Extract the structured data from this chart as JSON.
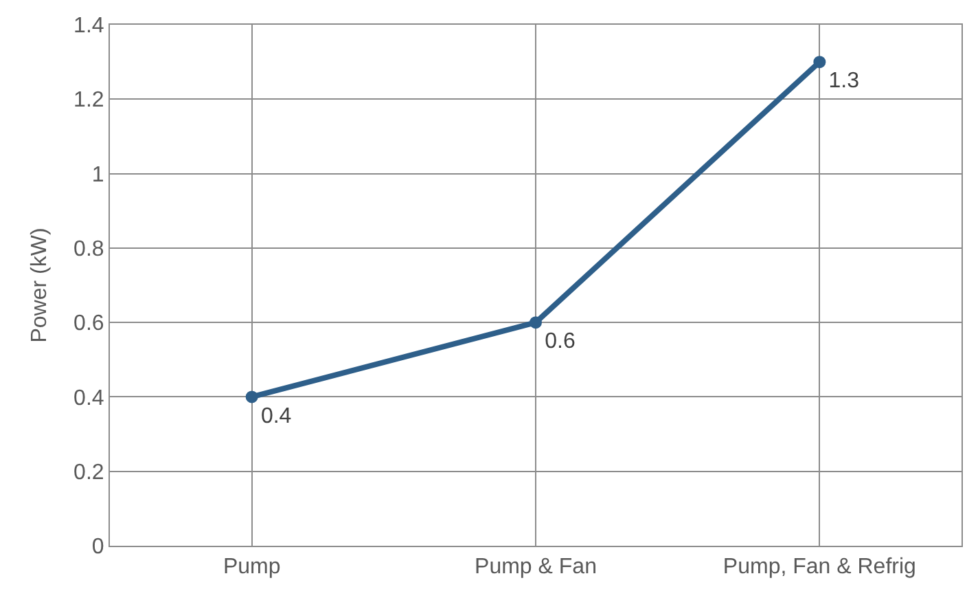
{
  "chart_data": {
    "type": "line",
    "ylabel": "Power (kW)",
    "categories": [
      "Pump",
      "Pump & Fan",
      "Pump, Fan & Refrig"
    ],
    "series": [
      {
        "color": "#2e5f8a",
        "values": [
          0.4,
          0.6,
          1.3
        ]
      }
    ],
    "ylim": [
      0,
      1.4
    ],
    "yticks": [
      0,
      0.2,
      0.4,
      0.6,
      0.8,
      {
        "value": 1,
        "label": "1"
      },
      1.2,
      1.4
    ],
    "grid": true,
    "marker": "circle",
    "line_style": "solid",
    "data_labels": true,
    "legend": false
  }
}
